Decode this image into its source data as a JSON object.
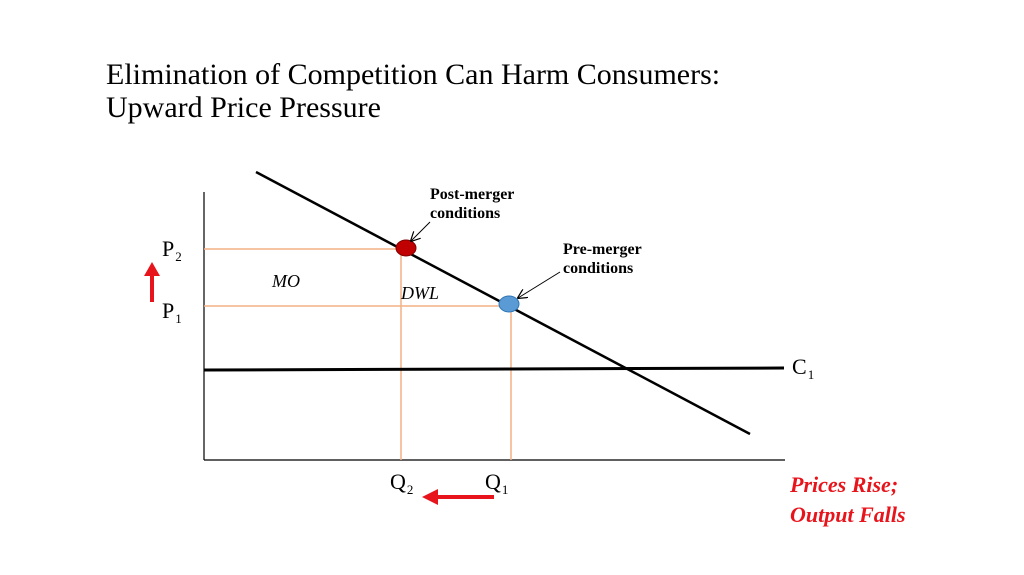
{
  "slide": {
    "title_line1": "Elimination of Competition Can Harm Consumers:",
    "title_line2": "Upward Price Pressure"
  },
  "diagram": {
    "price_labels": {
      "p2": "P",
      "p2_sub": "2",
      "p1": "P",
      "p1_sub": "1"
    },
    "quantity_labels": {
      "q2": "Q",
      "q2_sub": "2",
      "q1": "Q",
      "q1_sub": "1"
    },
    "cost_label": "C",
    "cost_label_sub": "1",
    "area_labels": {
      "mo": "MO",
      "dwl": "DWL"
    },
    "post_merger": {
      "line1": "Post-merger",
      "line2": "conditions",
      "color": "#c00000"
    },
    "pre_merger": {
      "line1": "Pre-merger",
      "line2": "conditions",
      "color": "#5b9bd5"
    },
    "guide_color": "#f4b183",
    "arrow_color": "#e8141c"
  },
  "conclusion": {
    "line1": "Prices Rise;",
    "line2": "Output Falls"
  }
}
